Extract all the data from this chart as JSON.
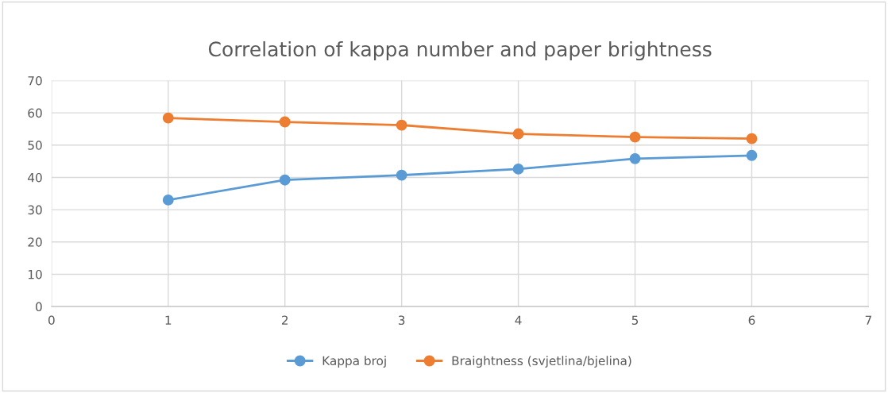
{
  "chart_data": {
    "type": "line",
    "title": "Correlation of kappa number and paper brightness",
    "x": [
      1,
      2,
      3,
      4,
      5,
      6
    ],
    "series": [
      {
        "name": "Kappa broj",
        "color": "#5b9bd5",
        "values": [
          33.0,
          39.2,
          40.7,
          42.6,
          45.8,
          46.8
        ]
      },
      {
        "name": "Braightness (svjetlina/bjelina)",
        "color": "#ed7d31",
        "values": [
          58.4,
          57.2,
          56.2,
          53.5,
          52.5,
          52.0
        ]
      }
    ],
    "xlim": [
      0,
      7
    ],
    "xticks": [
      0,
      1,
      2,
      3,
      4,
      5,
      6,
      7
    ],
    "ylim": [
      0,
      70
    ],
    "yticks": [
      0,
      10,
      20,
      30,
      40,
      50,
      60,
      70
    ],
    "grid": true,
    "legend": "bottom",
    "marker": "circle",
    "line_style": "solid"
  }
}
